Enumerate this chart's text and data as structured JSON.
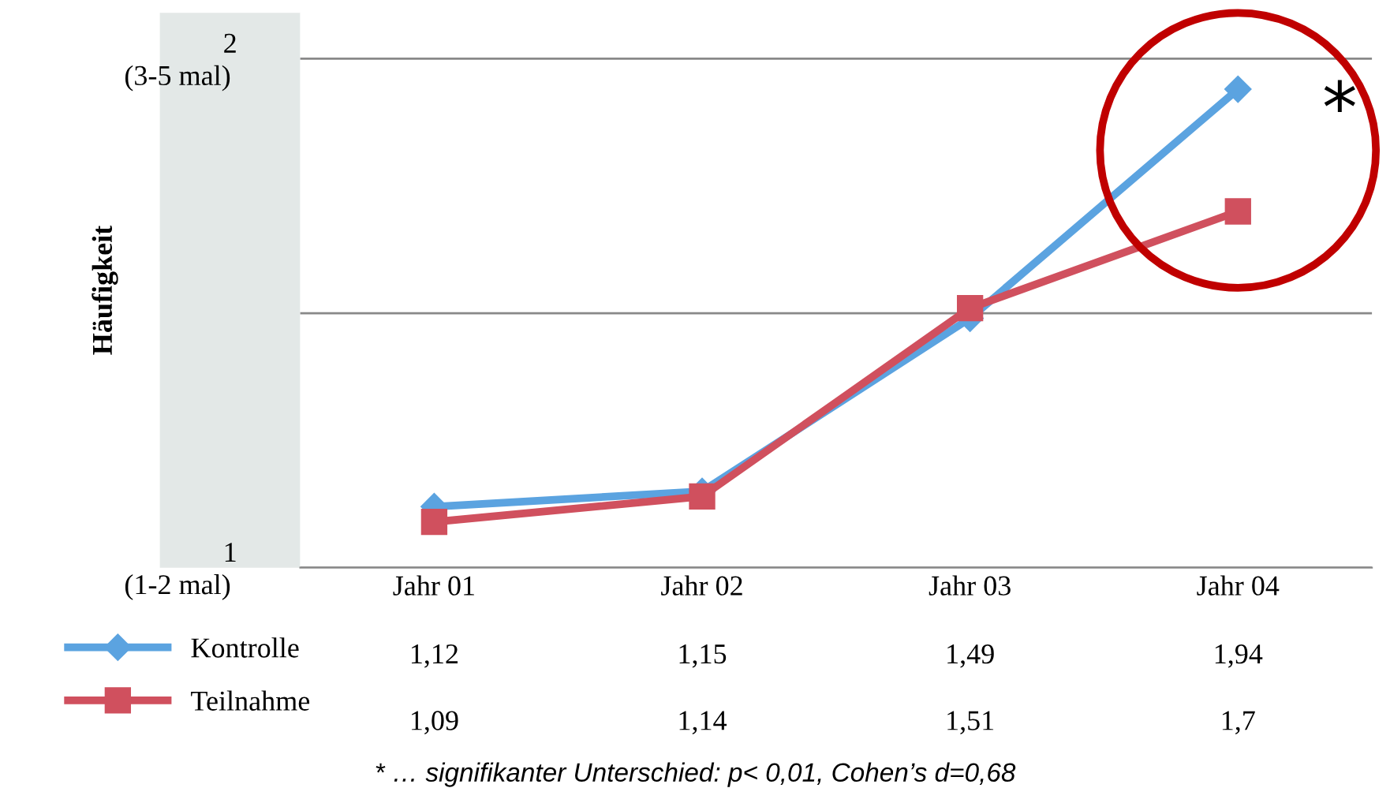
{
  "chart_data": {
    "type": "line",
    "ylabel": "Häufigkeit",
    "categories": [
      "Jahr 01",
      "Jahr 02",
      "Jahr 03",
      "Jahr 04"
    ],
    "series": [
      {
        "name": "Kontrolle",
        "color": "#5ba3e0",
        "marker": "diamond",
        "values": [
          1.12,
          1.15,
          1.49,
          1.94
        ],
        "value_labels": [
          "1,12",
          "1,15",
          "1,49",
          "1,94"
        ]
      },
      {
        "name": "Teilnahme",
        "color": "#d0505e",
        "marker": "square",
        "values": [
          1.09,
          1.14,
          1.51,
          1.7
        ],
        "value_labels": [
          "1,09",
          "1,14",
          "1,51",
          "1,7"
        ]
      }
    ],
    "ylim": [
      1,
      2.09
    ],
    "yticks": [
      1,
      {
        "value": 1.5,
        "label": null
      },
      2
    ],
    "grid": "y",
    "legend": "bottom left",
    "line_style": "solid",
    "annotations": [
      "*",
      "(1-2 mal)",
      "(3-5 mal)",
      "* … signifikanter Unterschied: p< 0,01, Cohen’s d=0,68"
    ]
  }
}
